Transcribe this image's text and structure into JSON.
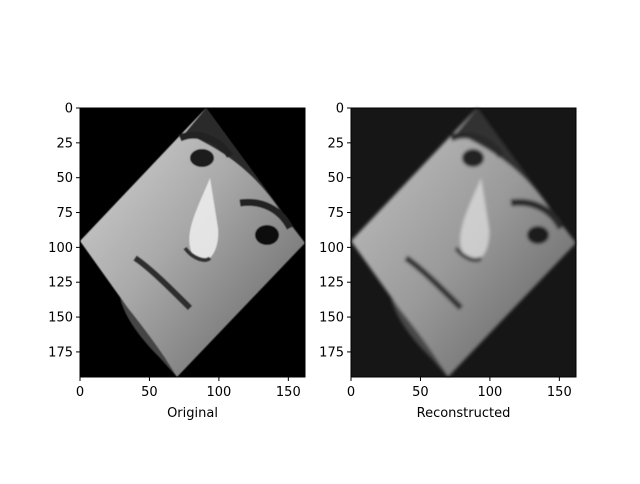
{
  "chart_data": [
    {
      "type": "heatmap",
      "xlabel": "Original",
      "ylabel": "",
      "title": "",
      "xlim": [
        0,
        162
      ],
      "ylim": [
        193,
        0
      ],
      "xticks": [
        0,
        50,
        100,
        150
      ],
      "yticks": [
        0,
        25,
        50,
        75,
        100,
        125,
        150,
        175
      ],
      "colormap": "gray",
      "background": "#000000",
      "content": "rotated face image (diamond)"
    },
    {
      "type": "heatmap",
      "xlabel": "Reconstructed",
      "ylabel": "",
      "title": "",
      "xlim": [
        0,
        162
      ],
      "ylim": [
        193,
        0
      ],
      "xticks": [
        0,
        50,
        100,
        150
      ],
      "yticks": [
        0,
        25,
        50,
        75,
        100,
        125,
        150,
        175
      ],
      "colormap": "gray",
      "background": "#161616",
      "content": "rotated face image (diamond), blurred reconstruction"
    }
  ]
}
